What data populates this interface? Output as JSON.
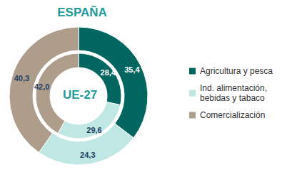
{
  "chart_data": {
    "type": "pie",
    "title": "ESPAÑA",
    "categories": [
      "Agricultura y pesca",
      "Ind. alimentación, bebidas y tabaco",
      "Comercialización"
    ],
    "colors": [
      "#00665f",
      "#bfe8e4",
      "#ae9d8b"
    ],
    "series": [
      {
        "name": "ESPAÑA",
        "values": [
          35.4,
          24.3,
          40.3
        ],
        "value_labels": [
          "35,4",
          "24,3",
          "40,3"
        ]
      },
      {
        "name": "UE-27",
        "values": [
          28.4,
          29.6,
          42.0
        ],
        "value_labels": [
          "28,4",
          "29,6",
          "42,0"
        ]
      }
    ],
    "legend": "right",
    "data_labels": true
  }
}
